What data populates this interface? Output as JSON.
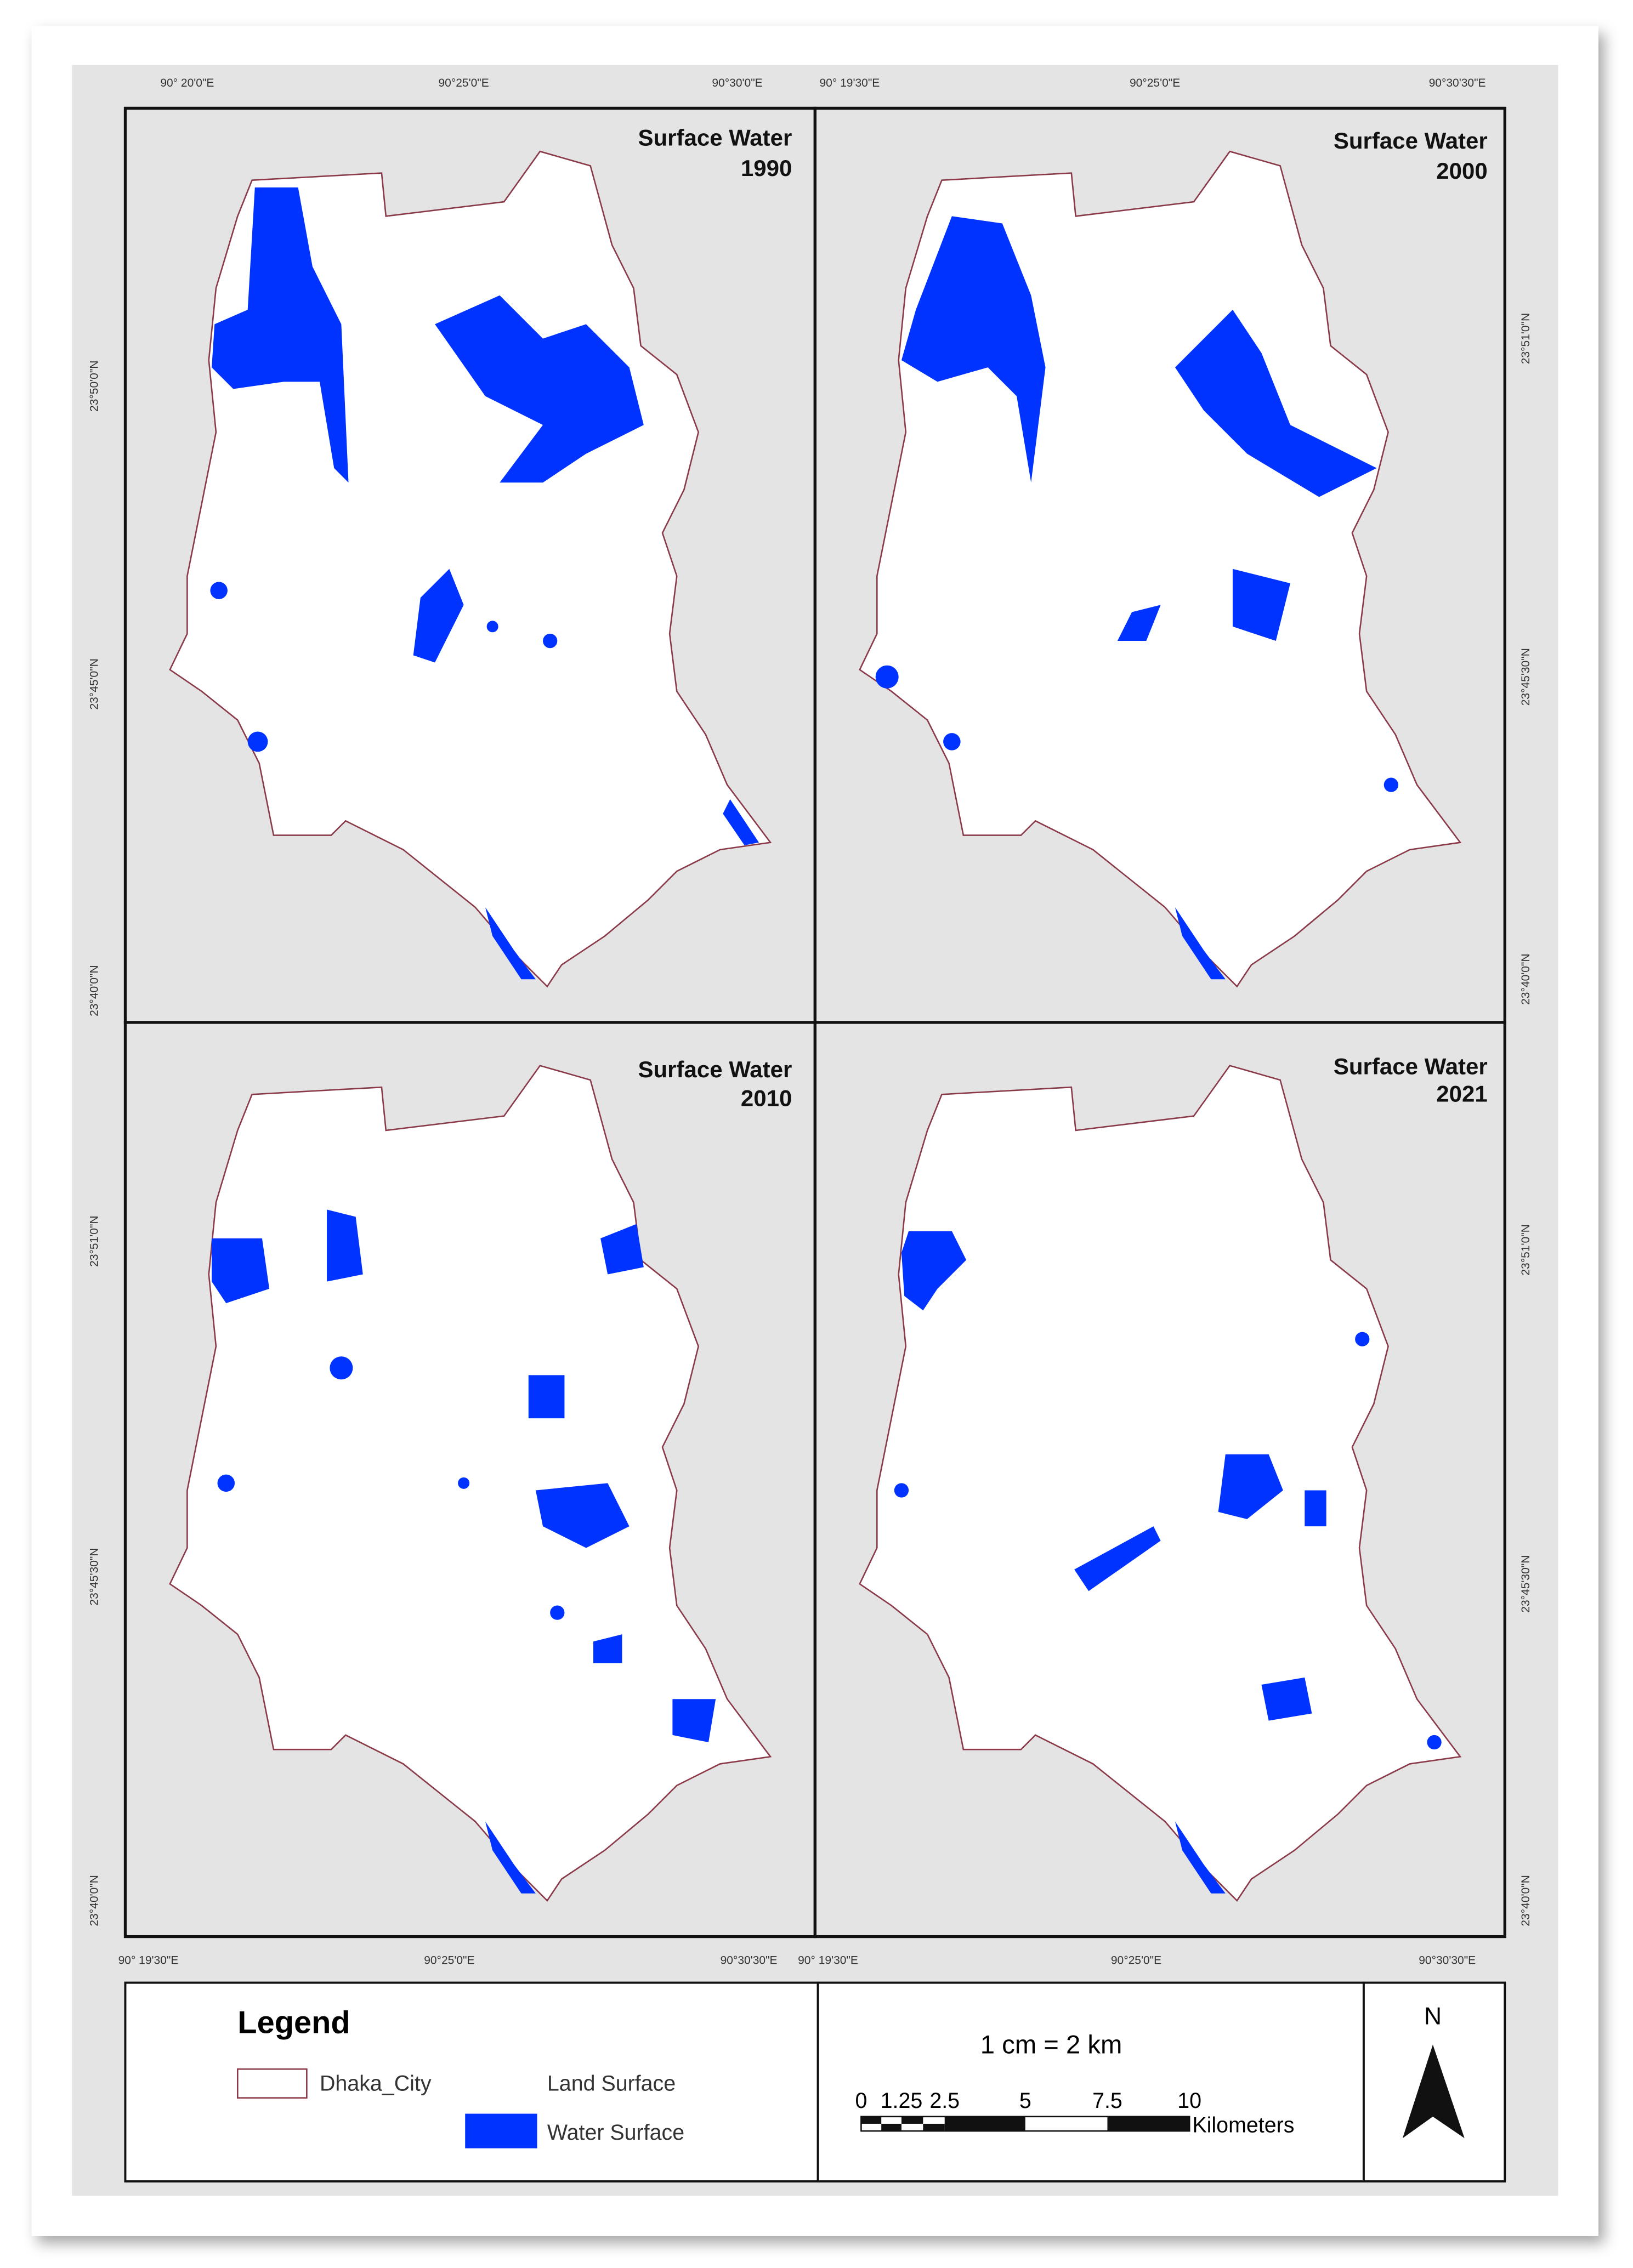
{
  "panels": [
    {
      "title": "Surface Water",
      "year": "1990"
    },
    {
      "title": "Surface Water",
      "year": "2000"
    },
    {
      "title": "Surface Water",
      "year": "2010"
    },
    {
      "title": "Surface Water",
      "year": "2021"
    }
  ],
  "coordinates": {
    "top": [
      "90° 20'0\"E",
      "90°25'0\"E",
      "90°30'0\"E",
      "90° 19'30\"E",
      "90°25'0\"E",
      "90°30'30\"E"
    ],
    "bottom": [
      "90° 19'30\"E",
      "90°25'0\"E",
      "90°30'30\"E",
      "90° 19'30\"E",
      "90°25'0\"E",
      "90°30'30\"E"
    ],
    "left": [
      "23°50'0\"N",
      "23°45'0\"N",
      "23°40'0\"N",
      "23°51'0\"N",
      "23°45'30\"N",
      "23°40'0\"N"
    ],
    "right": [
      "23°51'0\"N",
      "23°45'30\"N",
      "23°40'0\"N",
      "23°51'0\"N",
      "23°45'30\"N",
      "23°40'0\"N"
    ]
  },
  "legend": {
    "title": "Legend",
    "items": [
      "Dhaka_City",
      "Land Surface",
      "Water Surface"
    ]
  },
  "scale": {
    "text": "1 cm = 2 km",
    "labels": [
      "0",
      "1.25",
      "2.5",
      "5",
      "7.5",
      "10"
    ],
    "unit": "Kilometers"
  },
  "north": "N"
}
